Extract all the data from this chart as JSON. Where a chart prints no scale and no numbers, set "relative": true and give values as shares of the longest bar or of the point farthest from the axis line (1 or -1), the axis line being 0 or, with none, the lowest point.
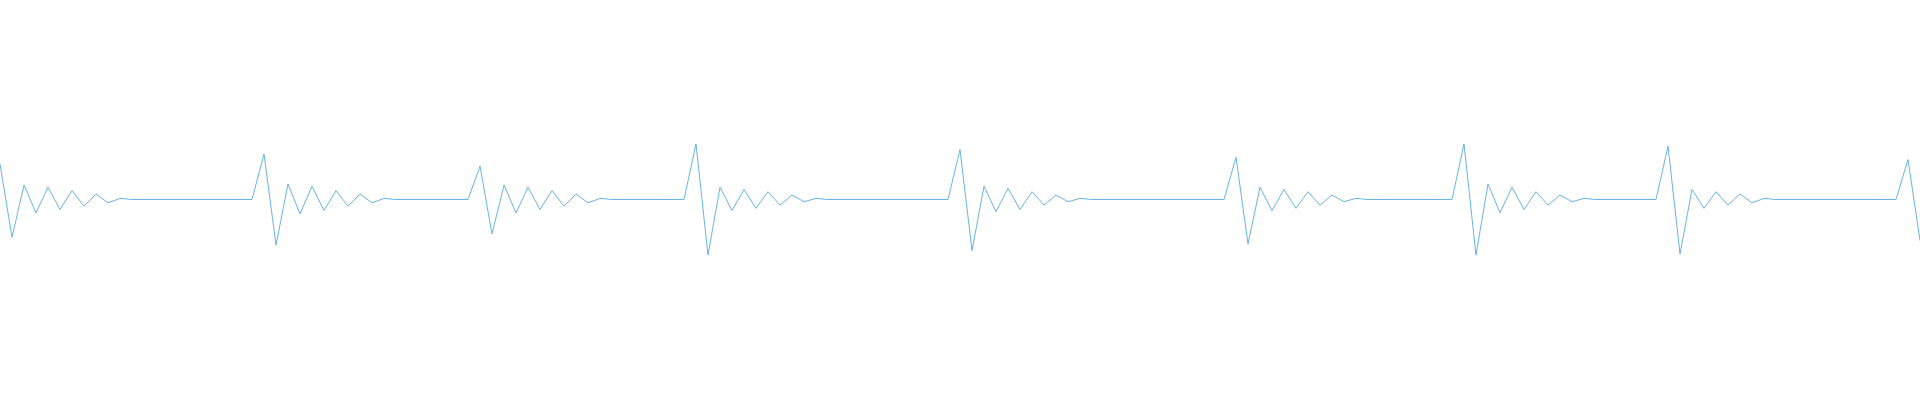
{
  "chart_data": {
    "type": "line",
    "relative": true,
    "color": "#5dade2",
    "categories": [
      null,
      null,
      null,
      null,
      null,
      null,
      null,
      null,
      null,
      null,
      null,
      null,
      null,
      null,
      null,
      null,
      null,
      null,
      null,
      null,
      null,
      null,
      null,
      null,
      null,
      null,
      null,
      null,
      null,
      null,
      null,
      null,
      null,
      null,
      null,
      null,
      null,
      null,
      null,
      null,
      null,
      null,
      null,
      null,
      null,
      null,
      null,
      null,
      null,
      null,
      null,
      null,
      null,
      null,
      null,
      null,
      null,
      null,
      null,
      null,
      null,
      null,
      null,
      null,
      null,
      null,
      null,
      null,
      null,
      null,
      null,
      null,
      null,
      null,
      null,
      null,
      null,
      null,
      null,
      null,
      null,
      null,
      null,
      null,
      null,
      null,
      null,
      null,
      null,
      null,
      null,
      null,
      null,
      null,
      null,
      null,
      null,
      null,
      null,
      null,
      null,
      null,
      null,
      null,
      null,
      null,
      null,
      null,
      null,
      null,
      null,
      null,
      null,
      null,
      null,
      null,
      null,
      null,
      null,
      null,
      null,
      null,
      null,
      null,
      null,
      null,
      null,
      null,
      null,
      null,
      null,
      null,
      null,
      null,
      null,
      null,
      null,
      null,
      null,
      null,
      null,
      null,
      null,
      null,
      null,
      null,
      null,
      null,
      null,
      null,
      null,
      null,
      null,
      null,
      null,
      null,
      null,
      null,
      null,
      null,
      null
    ],
    "values": [
      0.82,
      0.16,
      0.63,
      0.38,
      0.61,
      0.41,
      0.58,
      0.44,
      0.55,
      0.47,
      0.51,
      0.5,
      0.5,
      0.5,
      0.5,
      0.5,
      0.5,
      0.5,
      0.5,
      0.5,
      0.5,
      0.5,
      0.91,
      0.09,
      0.64,
      0.37,
      0.62,
      0.4,
      0.58,
      0.44,
      0.55,
      0.47,
      0.51,
      0.5,
      0.5,
      0.5,
      0.5,
      0.5,
      0.5,
      0.5,
      0.8,
      0.19,
      0.63,
      0.38,
      0.61,
      0.41,
      0.58,
      0.44,
      0.55,
      0.47,
      0.51,
      0.5,
      0.5,
      0.5,
      0.5,
      0.5,
      0.5,
      0.5,
      1.0,
      0.0,
      0.61,
      0.4,
      0.59,
      0.42,
      0.57,
      0.45,
      0.54,
      0.48,
      0.51,
      0.5,
      0.5,
      0.5,
      0.5,
      0.5,
      0.5,
      0.5,
      0.5,
      0.5,
      0.5,
      0.5,
      0.95,
      0.04,
      0.62,
      0.39,
      0.6,
      0.41,
      0.57,
      0.45,
      0.54,
      0.48,
      0.51,
      0.5,
      0.5,
      0.5,
      0.5,
      0.5,
      0.5,
      0.5,
      0.5,
      0.5,
      0.5,
      0.5,
      0.5,
      0.88,
      0.1,
      0.61,
      0.4,
      0.59,
      0.42,
      0.57,
      0.45,
      0.54,
      0.48,
      0.51,
      0.5,
      0.5,
      0.5,
      0.5,
      0.5,
      0.5,
      0.5,
      0.5,
      1.0,
      0.0,
      0.64,
      0.38,
      0.61,
      0.41,
      0.57,
      0.45,
      0.54,
      0.48,
      0.51,
      0.5,
      0.5,
      0.5,
      0.5,
      0.5,
      0.5,
      0.98,
      0.01,
      0.59,
      0.42,
      0.57,
      0.45,
      0.55,
      0.47,
      0.51,
      0.5,
      0.5,
      0.5,
      0.5,
      0.5,
      0.5,
      0.5,
      0.5,
      0.5,
      0.5,
      0.5,
      0.86,
      0.13
    ]
  }
}
